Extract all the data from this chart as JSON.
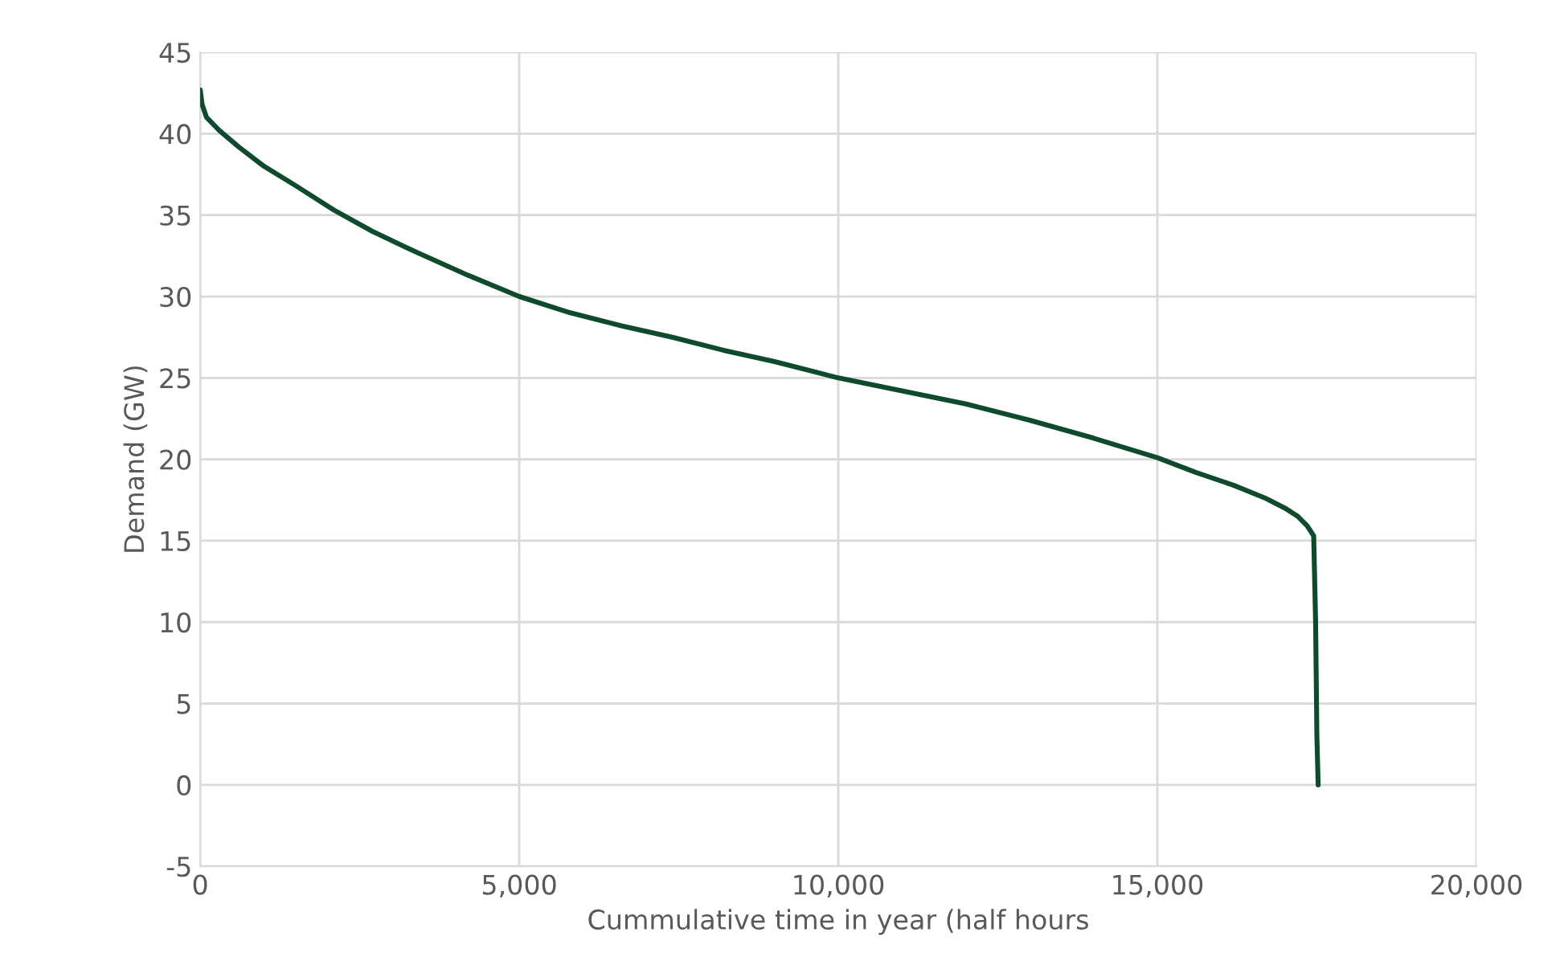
{
  "chart_data": {
    "type": "line",
    "xlabel": "Cummulative time in year (half hours",
    "ylabel": "Demand (GW)",
    "xlim": [
      0,
      20000
    ],
    "ylim": [
      -5,
      45
    ],
    "xticks": [
      {
        "value": 0,
        "label": "0"
      },
      {
        "value": 5000,
        "label": "5,000"
      },
      {
        "value": 10000,
        "label": "10,000"
      },
      {
        "value": 15000,
        "label": "15,000"
      },
      {
        "value": 20000,
        "label": "20,000"
      }
    ],
    "yticks": [
      -5,
      0,
      5,
      10,
      15,
      20,
      25,
      30,
      35,
      40,
      45
    ],
    "grid": true,
    "marker": "none",
    "line_style": "solid",
    "series": [
      {
        "color": "#0e4a2c",
        "x": [
          0,
          30,
          100,
          300,
          600,
          1000,
          1500,
          2100,
          2700,
          3400,
          4200,
          5000,
          5800,
          6600,
          7400,
          8200,
          9000,
          10000,
          11000,
          12000,
          13000,
          14000,
          15000,
          15600,
          16200,
          16700,
          17000,
          17200,
          17350,
          17450,
          17480,
          17500,
          17520
        ],
        "values": [
          42.7,
          41.8,
          41,
          40.2,
          39.2,
          38,
          36.8,
          35.3,
          34,
          32.7,
          31.3,
          30,
          29,
          28.2,
          27.5,
          26.7,
          26,
          25,
          24.2,
          23.4,
          22.4,
          21.3,
          20.1,
          19.2,
          18.4,
          17.6,
          17,
          16.5,
          15.9,
          15.3,
          10,
          3,
          0
        ]
      }
    ]
  }
}
